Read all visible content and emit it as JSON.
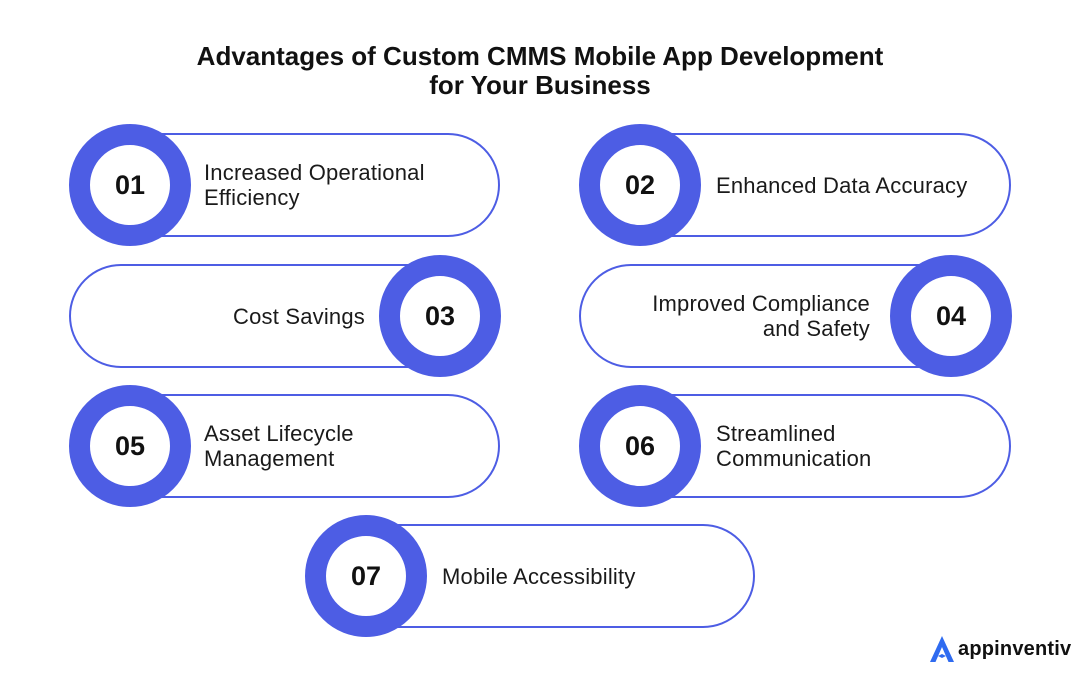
{
  "title": {
    "line1": "Advantages of Custom CMMS Mobile App Development",
    "line2": "for Your Business"
  },
  "items": [
    {
      "number": "01",
      "lines": [
        "Increased Operational",
        "Efficiency"
      ]
    },
    {
      "number": "02",
      "lines": [
        "Enhanced Data Accuracy"
      ]
    },
    {
      "number": "03",
      "lines": [
        "Cost Savings"
      ]
    },
    {
      "number": "04",
      "lines": [
        "Improved Compliance",
        "and Safety"
      ]
    },
    {
      "number": "05",
      "lines": [
        "Asset Lifecycle",
        "Management"
      ]
    },
    {
      "number": "06",
      "lines": [
        "Streamlined",
        "Communication"
      ]
    },
    {
      "number": "07",
      "lines": [
        "Mobile Accessibility"
      ]
    }
  ],
  "logo": {
    "text": "appinventiv",
    "icon": "appinventiv-logo-icon"
  },
  "colors": {
    "accent": "#4d5de4",
    "text": "#111111",
    "background": "#ffffff"
  }
}
